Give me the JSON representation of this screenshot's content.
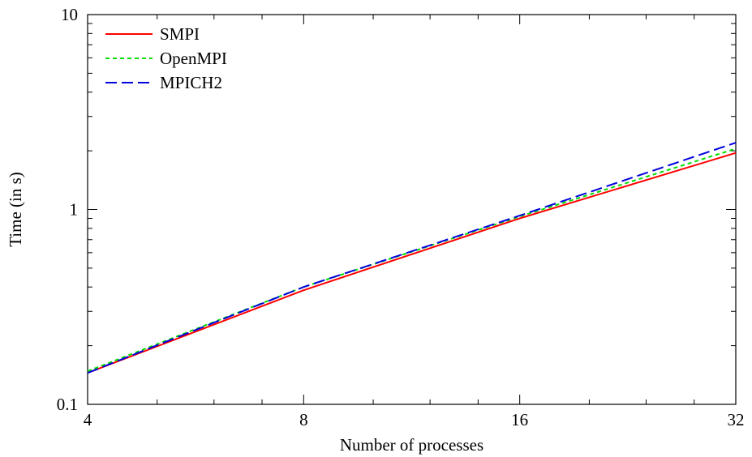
{
  "chart_data": {
    "type": "line",
    "xlabel": "Number of processes",
    "ylabel": "Time (in s)",
    "x_scale": "log2",
    "y_scale": "log10",
    "xlim": [
      4,
      32
    ],
    "ylim": [
      0.1,
      10
    ],
    "x_ticks": [
      "4",
      "8",
      "16",
      "32"
    ],
    "y_ticks": [
      "0.1",
      "1",
      "10"
    ],
    "legend_position": "top-left",
    "grid": false,
    "series": [
      {
        "name": "SMPI",
        "color": "#ff0000",
        "style": "solid",
        "x": [
          4,
          8,
          16,
          32
        ],
        "y": [
          0.145,
          0.385,
          0.9,
          1.95
        ]
      },
      {
        "name": "OpenMPI",
        "color": "#00dd00",
        "style": "dotted",
        "x": [
          4,
          8,
          16,
          32
        ],
        "y": [
          0.148,
          0.4,
          0.92,
          2.05
        ]
      },
      {
        "name": "MPICH2",
        "color": "#0000dd",
        "style": "dashed",
        "x": [
          4,
          8,
          16,
          32
        ],
        "y": [
          0.145,
          0.4,
          0.93,
          2.2
        ]
      }
    ]
  }
}
